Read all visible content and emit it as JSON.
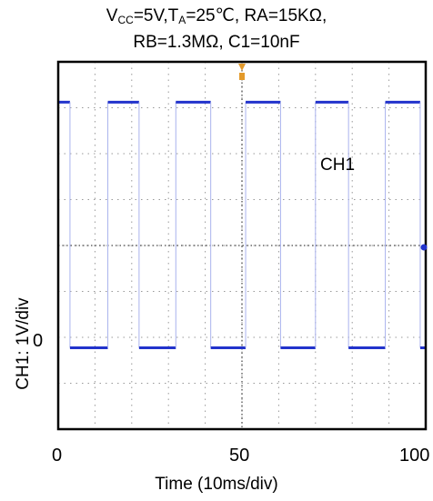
{
  "title_line1": {
    "v": "V",
    "cc": "CC",
    "mid": "=5V,T",
    "a": "A",
    "rest": "=25℃, RA=15KΩ,"
  },
  "title_line2": "RB=1.3MΩ, C1=10nF",
  "chart_data": {
    "type": "line",
    "xlabel": "Time (10ms/div)",
    "ylabel": "CH1: 1V/div",
    "xticks": [
      "0",
      "50",
      "100"
    ],
    "yzero_label": "0",
    "trace_label": "CH1",
    "xlim": [
      0,
      100
    ],
    "ylim_div": [
      -1,
      7
    ],
    "grid": true,
    "colors": {
      "trace": "#2233cc",
      "trace_edge": "#aab3ee",
      "frame": "#000000",
      "grid": "#999999",
      "trigger": "#e39a2b"
    },
    "series": [
      {
        "high_div": 5.3,
        "low_div": -0.05,
        "x": [
          0,
          3.2,
          3.2,
          13.5,
          13.5,
          22,
          22,
          32,
          32,
          41.5,
          41.5,
          51,
          51,
          60.5,
          60.5,
          70,
          70,
          79,
          79,
          89,
          89,
          98.5,
          98.5,
          100
        ],
        "level": [
          "H",
          "H",
          "L",
          "L",
          "H",
          "H",
          "L",
          "L",
          "H",
          "H",
          "L",
          "L",
          "H",
          "H",
          "L",
          "L",
          "H",
          "H",
          "L",
          "L",
          "H",
          "H",
          "L",
          "L"
        ]
      }
    ]
  }
}
